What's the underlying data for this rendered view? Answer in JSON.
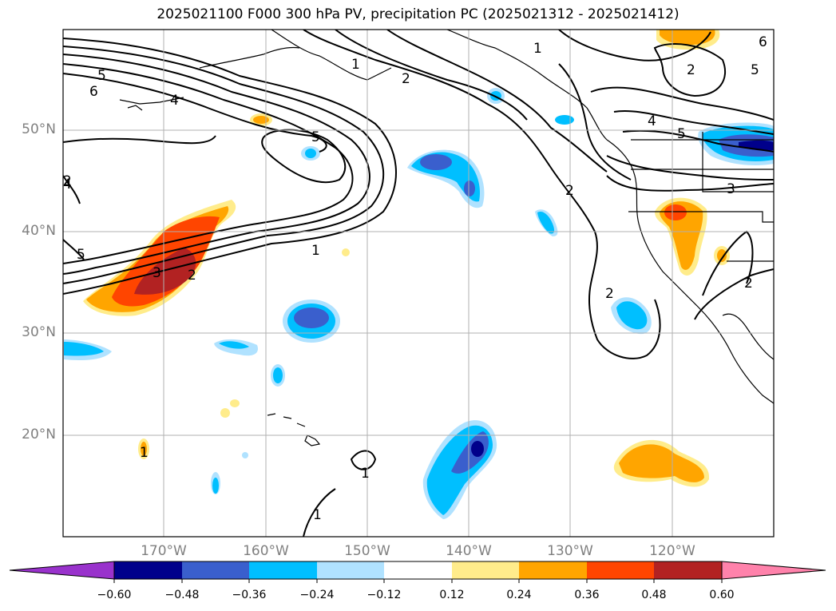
{
  "title": "2025021100 F000 300 hPa PV, precipitation PC (2025021312 - 2025021412)",
  "latitude_labels": [
    "50°N",
    "40°N",
    "30°N",
    "20°N"
  ],
  "longitude_labels": [
    "170°W",
    "160°W",
    "150°W",
    "140°W",
    "130°W",
    "120°W"
  ],
  "colorbar": {
    "ticks": [
      "−0.60",
      "−0.48",
      "−0.36",
      "−0.24",
      "−0.12",
      "0.12",
      "0.24",
      "0.36",
      "0.48",
      "0.60"
    ],
    "colors": [
      "#9932cc",
      "#00008b",
      "#3a5fcd",
      "#00bfff",
      "#b0e2ff",
      "#ffffff",
      "#ffec8b",
      "#ffa500",
      "#ff4500",
      "#b22222",
      "#ff82ab"
    ]
  },
  "contour_labels": [
    "5",
    "6",
    "4",
    "1",
    "2",
    "5",
    "1",
    "3",
    "2",
    "1",
    "2",
    "2",
    "4",
    "5",
    "3",
    "2",
    "2",
    "2",
    "5",
    "6",
    "4",
    "5",
    "1",
    "1",
    "1"
  ],
  "colors": {
    "grid": "#b0b0b0",
    "contour": "#000000",
    "coast": "#000000",
    "label_gray": "#808080"
  }
}
